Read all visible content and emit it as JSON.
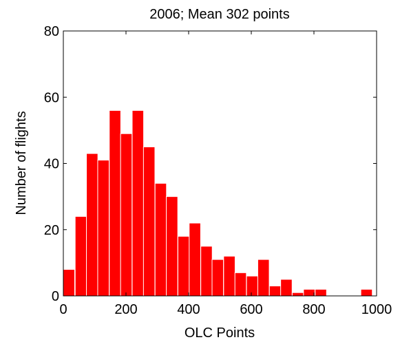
{
  "chart_data": {
    "type": "bar",
    "title": "2006; Mean 302 points",
    "xlabel": "OLC Points",
    "ylabel": "Number of flights",
    "xlim": [
      0,
      1000
    ],
    "ylim": [
      0,
      80
    ],
    "xticks": [
      0,
      200,
      400,
      600,
      800,
      1000
    ],
    "yticks": [
      0,
      20,
      40,
      60,
      80
    ],
    "grid": false,
    "bin_width": 36.5,
    "x": [
      18,
      56,
      92,
      128,
      165,
      201,
      238,
      274,
      311,
      347,
      384,
      420,
      457,
      493,
      530,
      566,
      603,
      639,
      676,
      712,
      749,
      785,
      822,
      858,
      895,
      931,
      968
    ],
    "values": [
      8,
      24,
      43,
      41,
      56,
      49,
      56,
      45,
      34,
      30,
      18,
      22,
      15,
      11,
      12,
      7,
      6,
      11,
      3,
      5,
      1,
      2,
      2,
      0,
      0,
      0,
      2
    ],
    "colors": {
      "bar": "#ff0000",
      "edge": "#ffffff"
    }
  }
}
